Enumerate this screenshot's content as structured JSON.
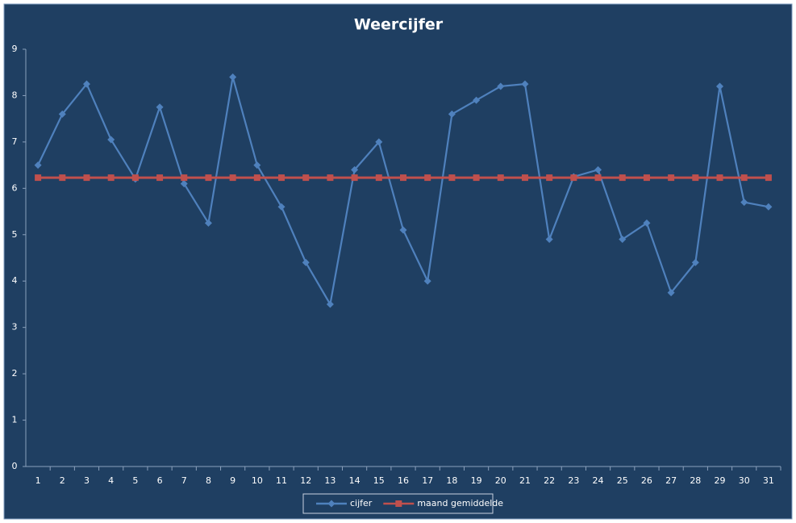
{
  "chart_data": {
    "type": "line",
    "title": "Weercijfer",
    "categories": [
      "1",
      "2",
      "3",
      "4",
      "5",
      "6",
      "7",
      "8",
      "9",
      "10",
      "11",
      "12",
      "13",
      "14",
      "15",
      "16",
      "17",
      "18",
      "19",
      "20",
      "21",
      "22",
      "23",
      "24",
      "25",
      "26",
      "27",
      "28",
      "29",
      "30",
      "31"
    ],
    "series": [
      {
        "name": "cijfer",
        "color": "#4f81bd",
        "marker": "diamond",
        "values": [
          6.5,
          7.6,
          8.25,
          7.05,
          6.2,
          7.75,
          6.1,
          5.25,
          8.4,
          6.5,
          5.6,
          4.4,
          3.5,
          6.4,
          7.0,
          5.1,
          4.0,
          7.6,
          7.9,
          8.2,
          8.25,
          4.9,
          6.25,
          6.4,
          4.9,
          5.25,
          3.75,
          4.4,
          8.2,
          5.7,
          5.6
        ]
      },
      {
        "name": "maand gemiddelde",
        "color": "#c0504d",
        "marker": "square",
        "values": [
          6.23,
          6.23,
          6.23,
          6.23,
          6.23,
          6.23,
          6.23,
          6.23,
          6.23,
          6.23,
          6.23,
          6.23,
          6.23,
          6.23,
          6.23,
          6.23,
          6.23,
          6.23,
          6.23,
          6.23,
          6.23,
          6.23,
          6.23,
          6.23,
          6.23,
          6.23,
          6.23,
          6.23,
          6.23,
          6.23,
          6.23
        ]
      }
    ],
    "ylim": [
      0,
      9
    ],
    "yticks": [
      0,
      1,
      2,
      3,
      4,
      5,
      6,
      7,
      8,
      9
    ],
    "grid": false,
    "legend": "bottom"
  }
}
